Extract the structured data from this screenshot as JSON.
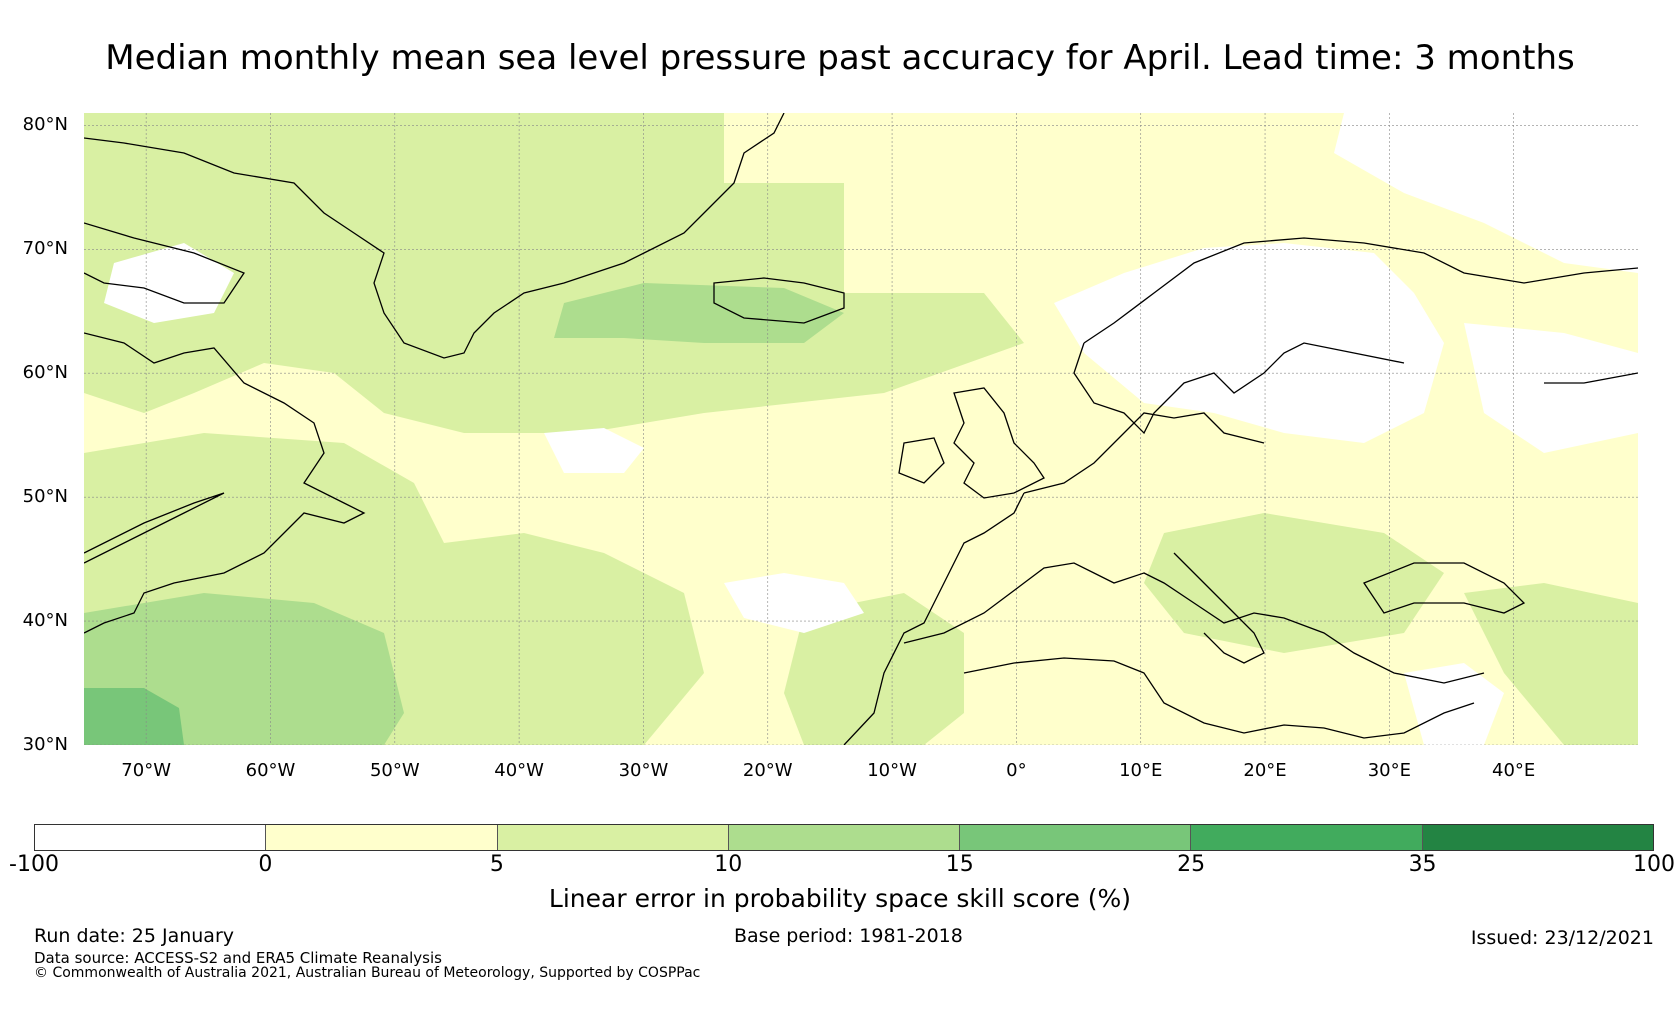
{
  "title": "Median monthly mean sea level pressure past accuracy for April. Lead time: 3 months",
  "map": {
    "lon_range": [
      -75,
      50
    ],
    "lat_range": [
      30,
      81
    ],
    "lat_labels": [
      "80°N",
      "70°N",
      "60°N",
      "50°N",
      "40°N",
      "30°N"
    ],
    "lat_values": [
      80,
      70,
      60,
      50,
      40,
      30
    ],
    "lon_labels": [
      "70°W",
      "60°W",
      "50°W",
      "40°W",
      "30°W",
      "20°W",
      "10°W",
      "0°",
      "10°E",
      "20°E",
      "30°E",
      "40°E"
    ],
    "lon_values": [
      -70,
      -60,
      -50,
      -40,
      -30,
      -20,
      -10,
      0,
      10,
      20,
      30,
      40
    ]
  },
  "colorbar": {
    "ticks": [
      "-100",
      "0",
      "5",
      "10",
      "15",
      "25",
      "35",
      "100"
    ],
    "colors": [
      "#ffffff",
      "#ffffcc",
      "#d9f0a3",
      "#addd8e",
      "#78c679",
      "#41ab5d",
      "#238443"
    ],
    "label": "Linear error in probability space skill score (%)"
  },
  "footer": {
    "run_date": "Run date: 25 January",
    "base_period": "Base period: 1981-2018",
    "issued": "Issued: 23/12/2021",
    "data_source": "Data source: ACCESS-S2 and ERA5 Climate Reanalysis",
    "copyright": "© Commonwealth of Australia 2021, Australian Bureau of Meteorology, Supported by COSPPac"
  }
}
